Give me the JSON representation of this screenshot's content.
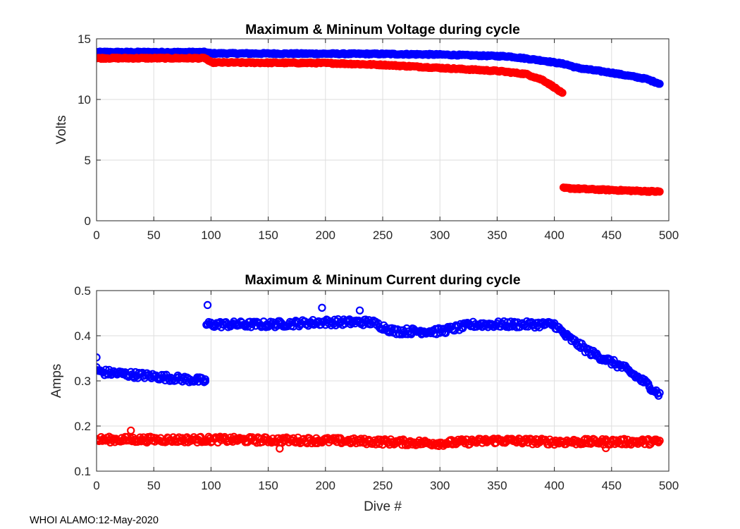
{
  "footer": "WHOI ALAMO:12-May-2020",
  "colors": {
    "max_series": "#0000ff",
    "min_series": "#ff0000",
    "grid": "#dedede",
    "axis": "#262626"
  },
  "chart_data": [
    {
      "type": "scatter",
      "marker": "circle",
      "title": "Maximum & Mininum Voltage during cycle",
      "xlabel": "",
      "ylabel": "Volts",
      "xlim": [
        0,
        500
      ],
      "ylim": [
        0,
        15
      ],
      "xticks": [
        0,
        50,
        100,
        150,
        200,
        250,
        300,
        350,
        400,
        450,
        500
      ],
      "yticks": [
        0,
        5,
        10,
        15
      ],
      "grid": true,
      "legend": "none",
      "series": [
        {
          "name": "Maximum Voltage",
          "color": "#0000ff",
          "profile": [
            [
              0,
              13.9
            ],
            [
              95,
              13.9
            ],
            [
              100,
              13.8
            ],
            [
              250,
              13.75
            ],
            [
              300,
              13.7
            ],
            [
              360,
              13.55
            ],
            [
              390,
              13.2
            ],
            [
              410,
              12.9
            ],
            [
              420,
              12.6
            ],
            [
              450,
              12.2
            ],
            [
              480,
              11.7
            ],
            [
              492,
              11.3
            ]
          ],
          "count": 493
        },
        {
          "name": "Minimum Voltage",
          "color": "#ff0000",
          "profile": [
            [
              0,
              13.4
            ],
            [
              95,
              13.4
            ],
            [
              100,
              13.05
            ],
            [
              200,
              13.0
            ],
            [
              250,
              12.85
            ],
            [
              300,
              12.6
            ],
            [
              350,
              12.35
            ],
            [
              375,
              12.1
            ],
            [
              390,
              11.6
            ],
            [
              400,
              11.0
            ],
            [
              407,
              10.5
            ],
            [
              408,
              2.7
            ],
            [
              430,
              2.6
            ],
            [
              460,
              2.5
            ],
            [
              492,
              2.4
            ]
          ],
          "count": 493
        }
      ]
    },
    {
      "type": "scatter",
      "marker": "circle",
      "title": "Maximum & Mininum Current during cycle",
      "xlabel": "Dive #",
      "ylabel": "Amps",
      "xlim": [
        0,
        500
      ],
      "ylim": [
        0.1,
        0.5
      ],
      "xticks": [
        0,
        50,
        100,
        150,
        200,
        250,
        300,
        350,
        400,
        450,
        500
      ],
      "yticks": [
        0.1,
        0.2,
        0.3,
        0.4,
        0.5
      ],
      "grid": true,
      "legend": "none",
      "series": [
        {
          "name": "Maximum Current",
          "color": "#0000ff",
          "profile": [
            [
              0,
              0.33
            ],
            [
              2,
              0.32
            ],
            [
              50,
              0.31
            ],
            [
              95,
              0.3
            ],
            [
              96,
              0.425
            ],
            [
              150,
              0.425
            ],
            [
              200,
              0.43
            ],
            [
              240,
              0.43
            ],
            [
              260,
              0.41
            ],
            [
              300,
              0.41
            ],
            [
              330,
              0.425
            ],
            [
              400,
              0.425
            ],
            [
              410,
              0.4
            ],
            [
              430,
              0.365
            ],
            [
              460,
              0.33
            ],
            [
              480,
              0.295
            ],
            [
              492,
              0.27
            ]
          ],
          "count": 493,
          "noise": 0.007,
          "outliers": [
            [
              0,
              0.352
            ],
            [
              97,
              0.468
            ],
            [
              197,
              0.462
            ],
            [
              230,
              0.456
            ],
            [
              95,
              0.299
            ]
          ]
        },
        {
          "name": "Minimum Current",
          "color": "#ff0000",
          "profile": [
            [
              0,
              0.17
            ],
            [
              100,
              0.17
            ],
            [
              200,
              0.168
            ],
            [
              300,
              0.162
            ],
            [
              350,
              0.168
            ],
            [
              400,
              0.165
            ],
            [
              492,
              0.165
            ]
          ],
          "count": 493,
          "noise": 0.0065,
          "outliers": [
            [
              30,
              0.19
            ],
            [
              160,
              0.15
            ],
            [
              445,
              0.151
            ]
          ]
        }
      ]
    }
  ]
}
